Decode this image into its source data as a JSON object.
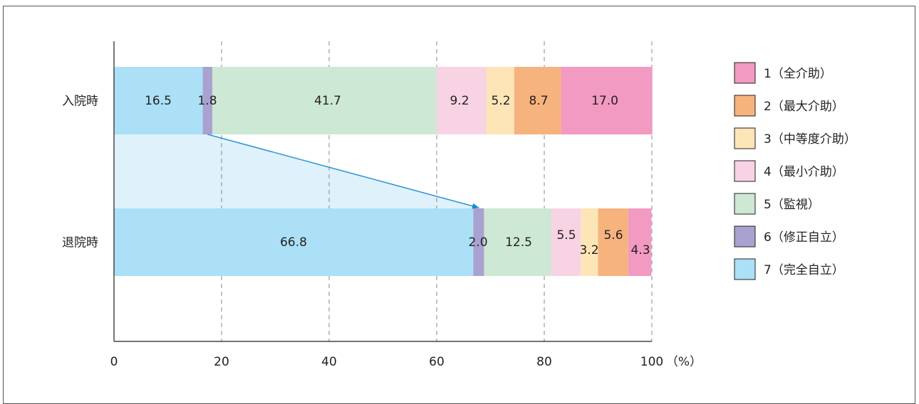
{
  "chart_data": {
    "type": "bar",
    "orientation": "horizontal",
    "stacked": true,
    "categories": [
      "入院時",
      "退院時"
    ],
    "series": [
      {
        "name": "7（完全自立）",
        "color": "#abe0f7",
        "values": [
          16.5,
          66.8
        ],
        "labels": [
          "16.5",
          "66.8"
        ]
      },
      {
        "name": "6（修正自立）",
        "color": "#a9a2d0",
        "values": [
          1.8,
          2.0
        ],
        "labels": [
          "1.8",
          "2.0"
        ]
      },
      {
        "name": "5（監視）",
        "color": "#cde8d4",
        "values": [
          41.7,
          12.5
        ],
        "labels": [
          "41.7",
          "12.5"
        ]
      },
      {
        "name": "4（最小介助）",
        "color": "#f8d3e4",
        "values": [
          9.2,
          5.5
        ],
        "labels": [
          "9.2",
          "5.5"
        ]
      },
      {
        "name": "3（中等度介助）",
        "color": "#fde5b7",
        "values": [
          5.2,
          3.2
        ],
        "labels": [
          "5.2",
          "3.2"
        ]
      },
      {
        "name": "2（最大介助）",
        "color": "#f7b37d",
        "values": [
          8.7,
          5.6
        ],
        "labels": [
          "8.7",
          "5.6"
        ]
      },
      {
        "name": "1（全介助）",
        "color": "#f29ac1",
        "values": [
          17.0,
          4.3
        ],
        "labels": [
          "17.0",
          "4.3"
        ]
      }
    ],
    "legend_order": [
      "1（全介助）",
      "2（最大介助）",
      "3（中等度介助）",
      "4（最小介助）",
      "5（監視）",
      "6（修正自立）",
      "7（完全自立）"
    ],
    "xlim": [
      0,
      100
    ],
    "xticks": [
      0,
      20,
      40,
      60,
      80,
      100
    ],
    "xtick_labels": [
      "0",
      "20",
      "40",
      "60",
      "80",
      "100"
    ],
    "x_unit": "（%）",
    "grid": "vertical dashed",
    "legend_position": "right",
    "annotation": "arrow from 入院時 to 退院時"
  }
}
